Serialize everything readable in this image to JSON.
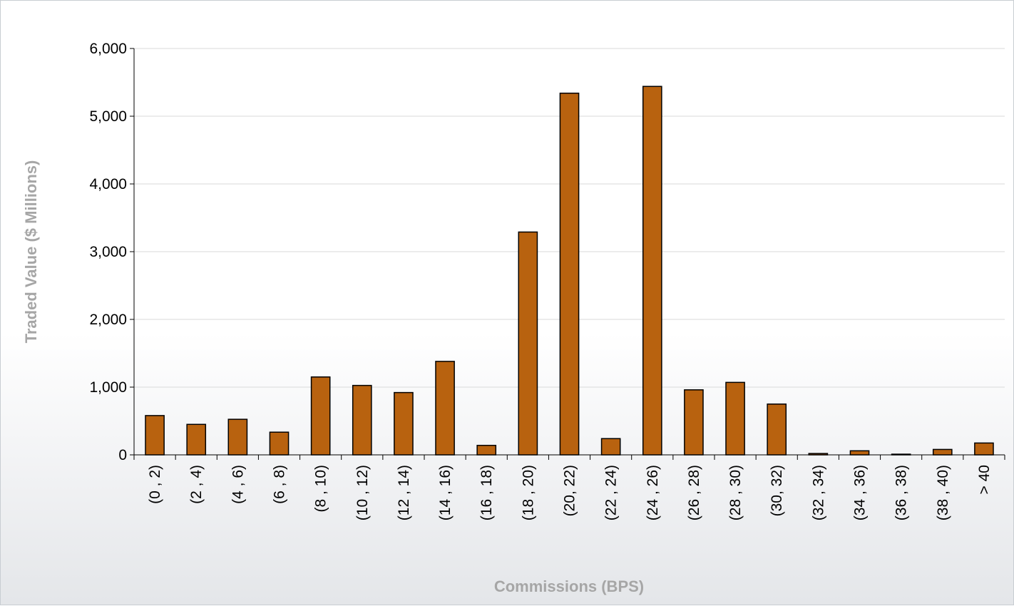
{
  "chart_data": {
    "type": "bar",
    "categories": [
      "(0 , 2)",
      "(2 , 4)",
      "(4 , 6)",
      "(6 , 8)",
      "(8 , 10)",
      "(10 , 12)",
      "(12 , 14)",
      "(14 , 16)",
      "(16 , 18)",
      "(18 , 20)",
      "(20, 22)",
      "(22 , 24)",
      "(24 , 26)",
      "(26 , 28)",
      "(28 , 30)",
      "(30, 32)",
      "(32 , 34)",
      "(34 , 36)",
      "(36 , 38)",
      "(38 , 40)",
      "> 40"
    ],
    "values": [
      580,
      450,
      525,
      335,
      1150,
      1025,
      920,
      1380,
      140,
      3290,
      5340,
      240,
      5440,
      960,
      1070,
      750,
      20,
      60,
      10,
      80,
      175
    ],
    "title": "",
    "xlabel": "Commissions (BPS)",
    "ylabel": "Traded Value ($ Millions)",
    "ylim": [
      0,
      6000
    ],
    "yticks": [
      "0",
      "1,000",
      "2,000",
      "3,000",
      "4,000",
      "5,000",
      "6,000"
    ],
    "grid": true,
    "bar_color": "#b8620f",
    "bar_edge_color": "#000000",
    "gridline_color": "#d9d9d9",
    "axis_title_color": "#a6a6a6"
  }
}
